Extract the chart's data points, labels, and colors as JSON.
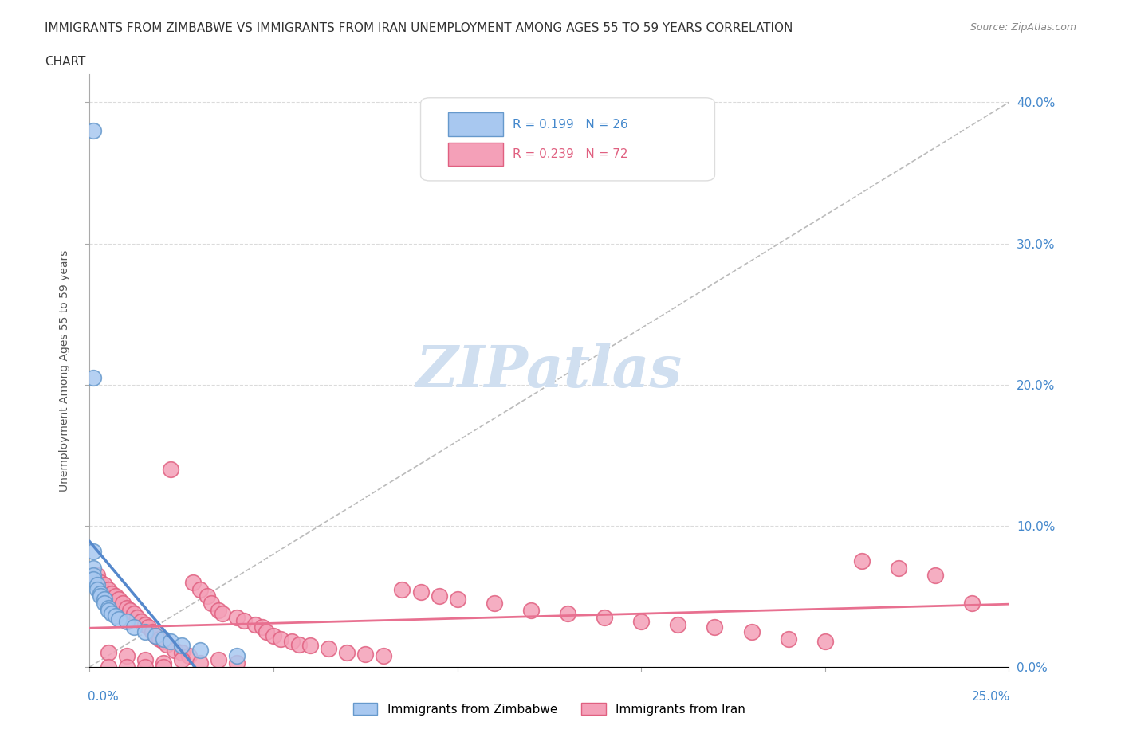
{
  "title_line1": "IMMIGRANTS FROM ZIMBABWE VS IMMIGRANTS FROM IRAN UNEMPLOYMENT AMONG AGES 55 TO 59 YEARS CORRELATION",
  "title_line2": "CHART",
  "source": "Source: ZipAtlas.com",
  "xlabel_ticks": [
    "0.0%",
    "25.0%"
  ],
  "ylabel_ticks": [
    "0.0%",
    "10.0%",
    "20.0%",
    "30.0%",
    "40.0%"
  ],
  "ylabel_label": "Unemployment Among Ages 55 to 59 years",
  "legend_zim": "Immigrants from Zimbabwe",
  "legend_iran": "Immigrants from Iran",
  "R_zim": "0.199",
  "N_zim": "26",
  "R_iran": "0.239",
  "N_iran": "72",
  "color_zim": "#a8c8f0",
  "color_iran": "#f4a0b8",
  "color_zim_dark": "#6699cc",
  "color_iran_dark": "#e06080",
  "color_zim_line": "#5588cc",
  "color_iran_line": "#e87090",
  "watermark_color": "#d0dff0",
  "background_color": "#ffffff",
  "grid_color": "#cccccc",
  "xlim": [
    0.0,
    0.25
  ],
  "ylim": [
    0.0,
    0.42
  ],
  "zim_scatter": [
    [
      0.001,
      0.38
    ],
    [
      0.001,
      0.205
    ],
    [
      0.001,
      0.082
    ],
    [
      0.001,
      0.07
    ],
    [
      0.001,
      0.065
    ],
    [
      0.001,
      0.062
    ],
    [
      0.002,
      0.058
    ],
    [
      0.002,
      0.055
    ],
    [
      0.003,
      0.052
    ],
    [
      0.003,
      0.05
    ],
    [
      0.004,
      0.048
    ],
    [
      0.004,
      0.045
    ],
    [
      0.005,
      0.042
    ],
    [
      0.005,
      0.04
    ],
    [
      0.006,
      0.038
    ],
    [
      0.007,
      0.036
    ],
    [
      0.008,
      0.034
    ],
    [
      0.01,
      0.032
    ],
    [
      0.012,
      0.028
    ],
    [
      0.015,
      0.025
    ],
    [
      0.018,
      0.022
    ],
    [
      0.02,
      0.02
    ],
    [
      0.022,
      0.018
    ],
    [
      0.025,
      0.015
    ],
    [
      0.03,
      0.012
    ],
    [
      0.04,
      0.008
    ]
  ],
  "iran_scatter": [
    [
      0.002,
      0.065
    ],
    [
      0.003,
      0.06
    ],
    [
      0.004,
      0.058
    ],
    [
      0.005,
      0.055
    ],
    [
      0.006,
      0.052
    ],
    [
      0.007,
      0.05
    ],
    [
      0.008,
      0.048
    ],
    [
      0.009,
      0.045
    ],
    [
      0.01,
      0.042
    ],
    [
      0.011,
      0.04
    ],
    [
      0.012,
      0.038
    ],
    [
      0.013,
      0.035
    ],
    [
      0.014,
      0.032
    ],
    [
      0.015,
      0.03
    ],
    [
      0.016,
      0.028
    ],
    [
      0.017,
      0.025
    ],
    [
      0.018,
      0.022
    ],
    [
      0.019,
      0.02
    ],
    [
      0.02,
      0.018
    ],
    [
      0.021,
      0.016
    ],
    [
      0.022,
      0.14
    ],
    [
      0.023,
      0.012
    ],
    [
      0.025,
      0.01
    ],
    [
      0.027,
      0.008
    ],
    [
      0.028,
      0.06
    ],
    [
      0.03,
      0.055
    ],
    [
      0.032,
      0.05
    ],
    [
      0.033,
      0.045
    ],
    [
      0.035,
      0.04
    ],
    [
      0.036,
      0.038
    ],
    [
      0.04,
      0.035
    ],
    [
      0.042,
      0.033
    ],
    [
      0.045,
      0.03
    ],
    [
      0.047,
      0.028
    ],
    [
      0.048,
      0.025
    ],
    [
      0.05,
      0.022
    ],
    [
      0.052,
      0.02
    ],
    [
      0.055,
      0.018
    ],
    [
      0.057,
      0.016
    ],
    [
      0.06,
      0.015
    ],
    [
      0.065,
      0.013
    ],
    [
      0.07,
      0.01
    ],
    [
      0.075,
      0.009
    ],
    [
      0.08,
      0.008
    ],
    [
      0.085,
      0.055
    ],
    [
      0.09,
      0.053
    ],
    [
      0.095,
      0.05
    ],
    [
      0.1,
      0.048
    ],
    [
      0.11,
      0.045
    ],
    [
      0.12,
      0.04
    ],
    [
      0.13,
      0.038
    ],
    [
      0.14,
      0.035
    ],
    [
      0.15,
      0.032
    ],
    [
      0.16,
      0.03
    ],
    [
      0.17,
      0.028
    ],
    [
      0.18,
      0.025
    ],
    [
      0.19,
      0.02
    ],
    [
      0.2,
      0.018
    ],
    [
      0.21,
      0.075
    ],
    [
      0.22,
      0.07
    ],
    [
      0.23,
      0.065
    ],
    [
      0.24,
      0.045
    ],
    [
      0.005,
      0.01
    ],
    [
      0.01,
      0.008
    ],
    [
      0.015,
      0.005
    ],
    [
      0.02,
      0.003
    ],
    [
      0.025,
      0.005
    ],
    [
      0.03,
      0.003
    ],
    [
      0.035,
      0.005
    ],
    [
      0.04,
      0.003
    ],
    [
      0.005,
      0.0
    ],
    [
      0.01,
      0.0
    ],
    [
      0.015,
      0.0
    ],
    [
      0.02,
      0.0
    ]
  ]
}
